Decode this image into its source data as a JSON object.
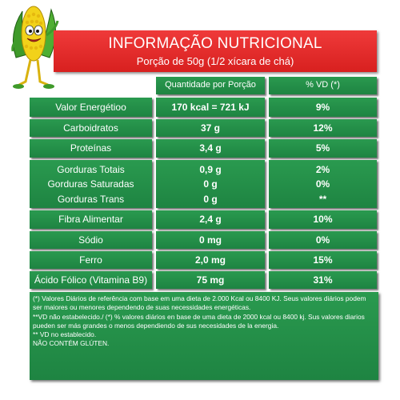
{
  "header": {
    "title": "INFORMAÇÃO NUTRICIONAL",
    "subtitle": "Porção de 50g (1/2 xícara de chá)"
  },
  "columns": {
    "quantity": "Quantidade por Porção",
    "dv": "% VD (*)"
  },
  "rows": {
    "energy": {
      "name": "Valor Energétioo",
      "qty": "170 kcal = 721 kJ",
      "dv": "9%"
    },
    "carbs": {
      "name": "Carboidratos",
      "qty": "37 g",
      "dv": "12%"
    },
    "protein": {
      "name": "Proteínas",
      "qty": "3,4 g",
      "dv": "5%"
    },
    "fats": {
      "total": {
        "name": "Gorduras Totais",
        "qty": "0,9 g",
        "dv": "2%"
      },
      "saturated": {
        "name": "Gorduras Saturadas",
        "qty": "0 g",
        "dv": "0%"
      },
      "trans": {
        "name": "Gorduras Trans",
        "qty": "0 g",
        "dv": "**"
      }
    },
    "fiber": {
      "name": "Fibra Alimentar",
      "qty": "2,4 g",
      "dv": "10%"
    },
    "sodium": {
      "name": "Sódio",
      "qty": "0 mg",
      "dv": "0%"
    },
    "iron": {
      "name": "Ferro",
      "qty": "2,0 mg",
      "dv": "15%"
    },
    "folic": {
      "name": "Ácido Fólico (Vitamina B9)",
      "qty": "75 mg",
      "dv": "31%"
    }
  },
  "footnotes": [
    "(*) Valores Diários de referência com base em uma dieta de 2.000 Kcal ou 8400 KJ. Seus valores diários podem ser maiores ou menores dependendo de suas necessidades energéticas.",
    "**VD não estabelecido./ (*) % valores diários en base de uma dieta de 2000 kcal ou 8400 kj. Sus valores diarios pueden ser más grandes o menos dependiendo de sus necesidades de la energia.",
    "** VD no establecido.",
    "NÃO CONTÉM GLÚTEN."
  ],
  "colors": {
    "header": "#d8201f",
    "cell": "#229046",
    "text": "#ffffff",
    "mascot_corn": "#f2d21a",
    "mascot_leaves": "#3f9a2a"
  },
  "icons": {
    "mascot": "corn-mascot-icon"
  }
}
